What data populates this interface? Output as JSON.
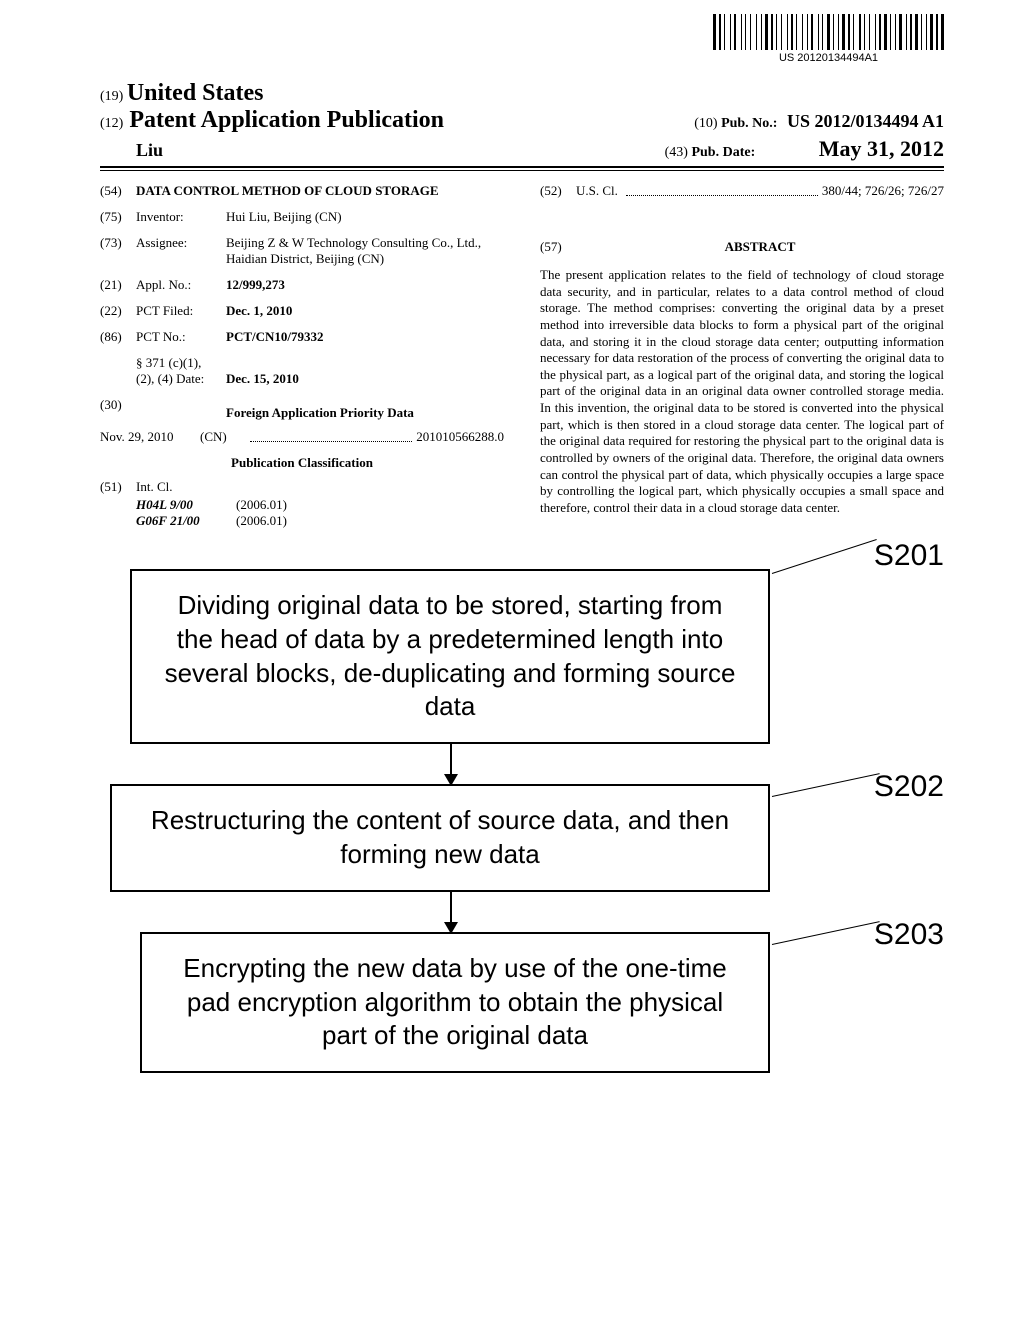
{
  "barcode_text": "US 20120134494A1",
  "header": {
    "country_code": "(19)",
    "country_name": "United States",
    "pub_code": "(12)",
    "pub_title": "Patent Application Publication",
    "author": "Liu",
    "pubno_code": "(10)",
    "pubno_label": "Pub. No.:",
    "pubno_value": "US 2012/0134494 A1",
    "pubdate_code": "(43)",
    "pubdate_label": "Pub. Date:",
    "pubdate_value": "May 31, 2012"
  },
  "left": {
    "title_code": "(54)",
    "title": "DATA CONTROL METHOD OF CLOUD STORAGE",
    "inventor_code": "(75)",
    "inventor_label": "Inventor:",
    "inventor_value": "Hui Liu",
    "inventor_loc": ", Beijing (CN)",
    "assignee_code": "(73)",
    "assignee_label": "Assignee:",
    "assignee_value": "Beijing Z & W Technology Consulting Co., Ltd.",
    "assignee_loc": ", Haidian District, Beijing (CN)",
    "applno_code": "(21)",
    "applno_label": "Appl. No.:",
    "applno_value": "12/999,273",
    "pctfiled_code": "(22)",
    "pctfiled_label": "PCT Filed:",
    "pctfiled_value": "Dec. 1, 2010",
    "pctno_code": "(86)",
    "pctno_label": "PCT No.:",
    "pctno_value": "PCT/CN10/79332",
    "s371_label": "§ 371 (c)(1),\n(2), (4) Date:",
    "s371_value": "Dec. 15, 2010",
    "foreign_code": "(30)",
    "foreign_title": "Foreign Application Priority Data",
    "foreign_date": "Nov. 29, 2010",
    "foreign_country": "(CN)",
    "foreign_num": "201010566288.0",
    "pubclass_title": "Publication Classification",
    "intcl_code": "(51)",
    "intcl_label": "Int. Cl.",
    "intcl_1_sym": "H04L 9/00",
    "intcl_1_ed": "(2006.01)",
    "intcl_2_sym": "G06F 21/00",
    "intcl_2_ed": "(2006.01)"
  },
  "right": {
    "uscl_code": "(52)",
    "uscl_label": "U.S. Cl.",
    "uscl_value": "380/44",
    "uscl_extra": "; 726/26; 726/27",
    "abstract_code": "(57)",
    "abstract_label": "ABSTRACT",
    "abstract_text": "The present application relates to the field of technology of cloud storage data security, and in particular, relates to a data control method of cloud storage. The method comprises: converting the original data by a preset method into irreversible data blocks to form a physical part of the original data, and storing it in the cloud storage data center; outputting information necessary for data restoration of the process of converting the original data to the physical part, as a logical part of the original data, and storing the logical part of the original data in an original data owner controlled storage media. In this invention, the original data to be stored is converted into the physical part, which is then stored in a cloud storage data center. The logical part of the original data required for restoring the physical part to the original data is controlled by owners of the original data. Therefore, the original data owners can control the physical part of data, which physically occupies a large space by controlling the logical part, which physically occupies a small space and therefore, control their data in a cloud storage data center."
  },
  "flowchart": {
    "step1_label": "S201",
    "step1_text": "Dividing original data to be stored, starting from the head of data by a predetermined length into several blocks, de-duplicating and forming source data",
    "step2_label": "S202",
    "step2_text": "Restructuring the content of source data, and then forming new data",
    "step3_label": "S203",
    "step3_text": "Encrypting the new data by use of the one-time pad encryption algorithm to obtain the physical part of the original data"
  }
}
